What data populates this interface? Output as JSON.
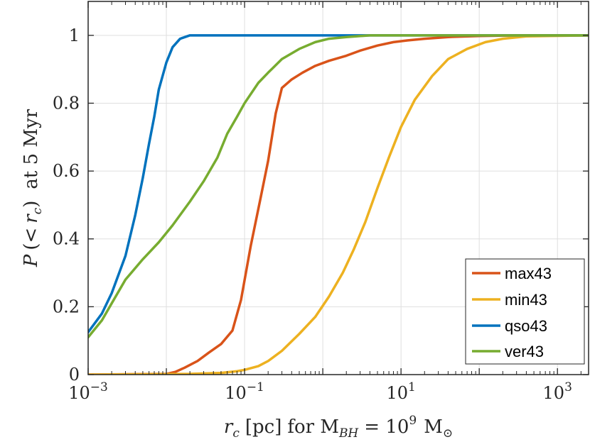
{
  "chart_data": {
    "type": "line",
    "xscale": "log",
    "xlim": [
      0.001,
      2500
    ],
    "ylim": [
      0,
      1.1
    ],
    "xlabel": {
      "var": "r",
      "var_sub": "c",
      "unit": "[pc]",
      "mid": "for M",
      "mid_sub": "BH",
      "eq": "= 10",
      "eq_sup": "9",
      "end": "M",
      "end_sub": "⊙"
    },
    "ylabel": {
      "pre": "P",
      "open": "(<",
      "var": "r",
      "var_sub": "c",
      "close": ")",
      "post": "at 5 Myr"
    },
    "x_ticks": [
      {
        "base": "10",
        "exp": "−3",
        "value": 0.001
      },
      {
        "base": "10",
        "exp": "−1",
        "value": 0.1
      },
      {
        "base": "10",
        "exp": "1",
        "value": 10
      },
      {
        "base": "10",
        "exp": "3",
        "value": 1000
      }
    ],
    "y_ticks": [
      {
        "label": "0",
        "value": 0
      },
      {
        "label": "0.2",
        "value": 0.2
      },
      {
        "label": "0.4",
        "value": 0.4
      },
      {
        "label": "0.6",
        "value": 0.6
      },
      {
        "label": "0.8",
        "value": 0.8
      },
      {
        "label": "1",
        "value": 1
      }
    ],
    "legend_position": "bottom-right",
    "series": [
      {
        "name": "max43",
        "color": "#D95319",
        "x": [
          0.001,
          0.01,
          0.013,
          0.017,
          0.025,
          0.035,
          0.05,
          0.07,
          0.09,
          0.12,
          0.16,
          0.2,
          0.25,
          0.3,
          0.4,
          0.55,
          0.8,
          1.2,
          2,
          3,
          5,
          8,
          12,
          20,
          40,
          100,
          300,
          2500
        ],
        "values": [
          0,
          0.002,
          0.008,
          0.02,
          0.04,
          0.065,
          0.09,
          0.13,
          0.22,
          0.38,
          0.52,
          0.63,
          0.77,
          0.845,
          0.87,
          0.89,
          0.91,
          0.925,
          0.94,
          0.955,
          0.97,
          0.98,
          0.985,
          0.99,
          0.995,
          0.998,
          1.0,
          1.0
        ]
      },
      {
        "name": "min43",
        "color": "#EDB120",
        "x": [
          0.001,
          0.02,
          0.05,
          0.08,
          0.1,
          0.15,
          0.2,
          0.3,
          0.5,
          0.8,
          1.2,
          1.8,
          2.5,
          3.5,
          5,
          7,
          10,
          15,
          25,
          40,
          70,
          120,
          200,
          400,
          2500
        ],
        "values": [
          0,
          0.002,
          0.005,
          0.01,
          0.014,
          0.025,
          0.04,
          0.07,
          0.12,
          0.17,
          0.23,
          0.3,
          0.37,
          0.45,
          0.55,
          0.64,
          0.73,
          0.81,
          0.88,
          0.93,
          0.96,
          0.98,
          0.99,
          0.997,
          1.0
        ]
      },
      {
        "name": "qso43",
        "color": "#0072BD",
        "x": [
          0.001,
          0.0015,
          0.002,
          0.003,
          0.004,
          0.005,
          0.006,
          0.007,
          0.008,
          0.01,
          0.012,
          0.015,
          0.02,
          0.025,
          0.03,
          0.05,
          2500
        ],
        "values": [
          0.125,
          0.18,
          0.24,
          0.35,
          0.47,
          0.58,
          0.68,
          0.76,
          0.84,
          0.92,
          0.965,
          0.99,
          1.0,
          1.0,
          1.0,
          1.0,
          1.0
        ]
      },
      {
        "name": "ver43",
        "color": "#77AC30",
        "x": [
          0.001,
          0.0015,
          0.002,
          0.003,
          0.005,
          0.008,
          0.012,
          0.02,
          0.03,
          0.045,
          0.06,
          0.08,
          0.1,
          0.15,
          0.2,
          0.3,
          0.5,
          0.8,
          1.2,
          2,
          4,
          10,
          30,
          2500
        ],
        "values": [
          0.11,
          0.16,
          0.21,
          0.28,
          0.34,
          0.39,
          0.44,
          0.51,
          0.57,
          0.64,
          0.71,
          0.76,
          0.8,
          0.86,
          0.89,
          0.93,
          0.96,
          0.98,
          0.99,
          0.995,
          1.0,
          1.0,
          1.0,
          1.0
        ]
      }
    ]
  }
}
